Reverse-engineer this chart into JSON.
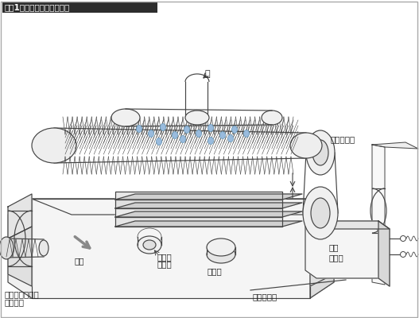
{
  "title": "【図1】簡易洗浄機の構想図",
  "title_bg": "#2d2d2d",
  "title_color": "#ffffff",
  "bg_color": "#ffffff",
  "border_color": "#aaaaaa",
  "line_color": "#444444",
  "water_color": "#99bbdd",
  "arrow_gray": "#888888",
  "labels": {
    "water": "水",
    "brush": "洗浄ブラシ",
    "gear_motor": "ギア\nモータ",
    "manual": "手動",
    "linear_bush_1": "リニア",
    "linear_bush_2": "ブシュ",
    "drain": "排水穴",
    "clear_cover": "透明カバー",
    "handle_1": "手動スライド用",
    "handle_2": "ハンドル"
  }
}
